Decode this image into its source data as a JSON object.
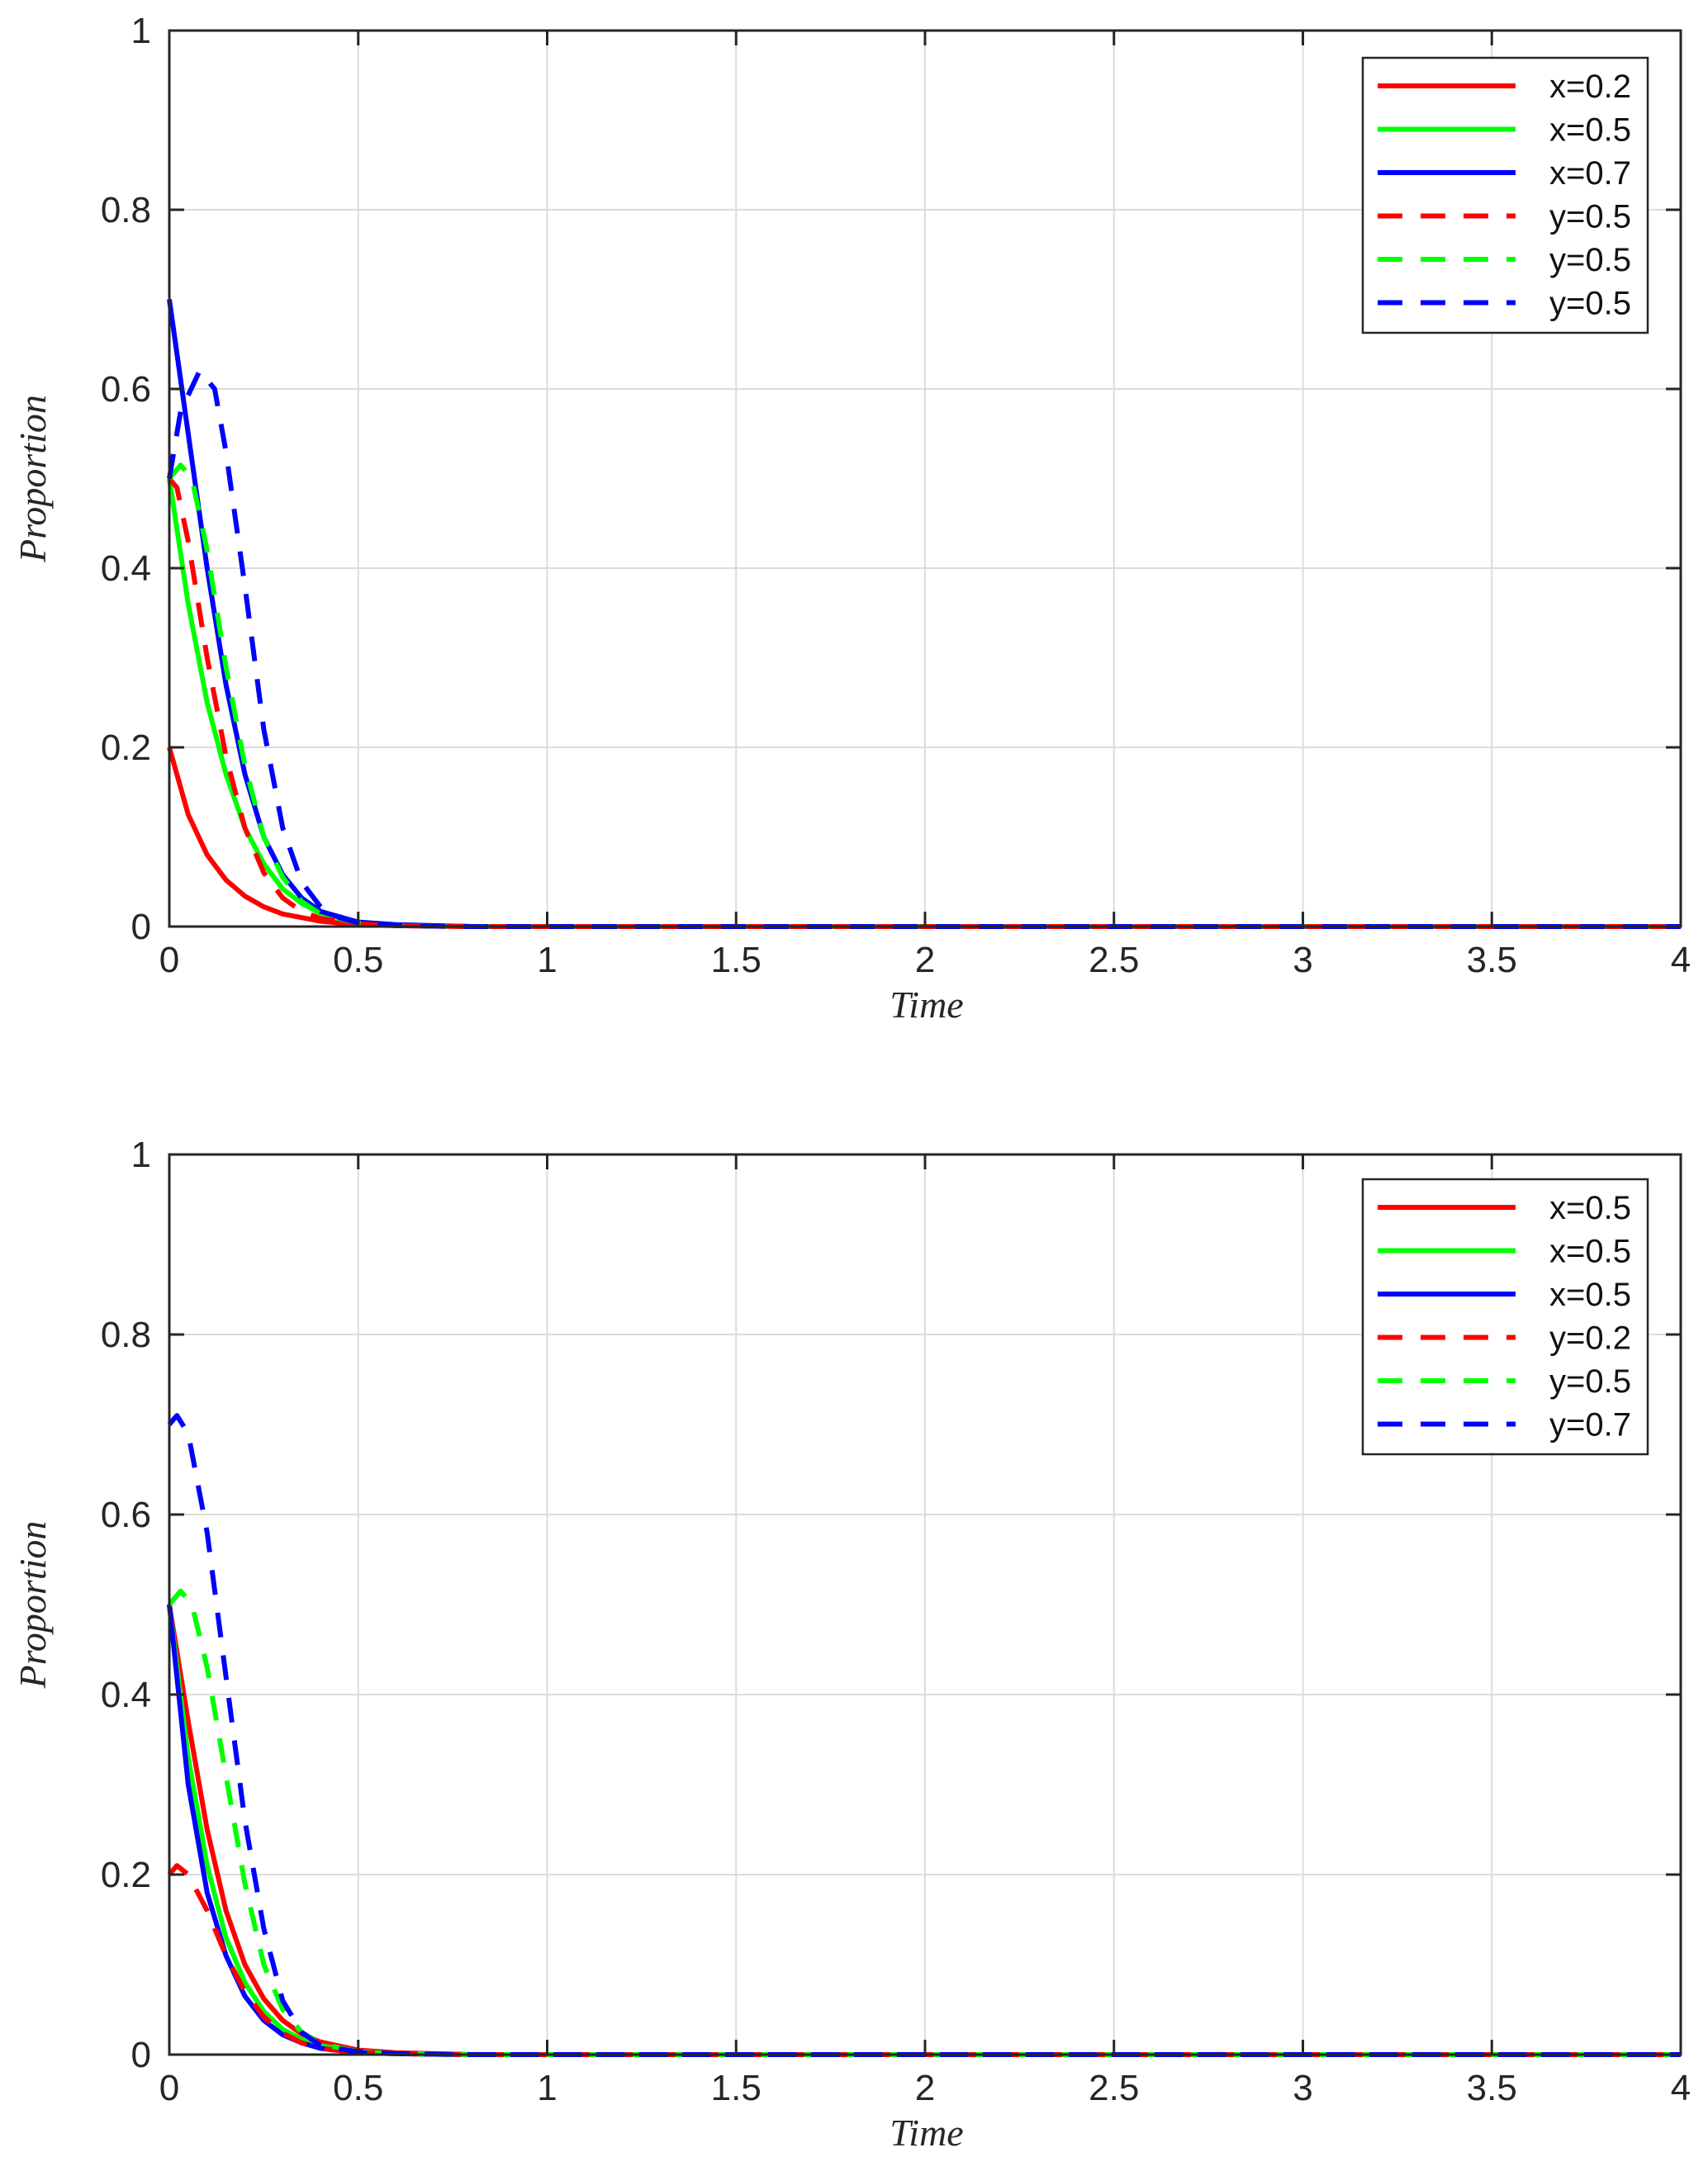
{
  "chart_data": [
    {
      "type": "line",
      "xlabel": "Time",
      "ylabel": "Proportion",
      "xlim": [
        0,
        4
      ],
      "ylim": [
        0,
        1
      ],
      "xticks": [
        "0",
        "0.5",
        "1",
        "1.5",
        "2",
        "2.5",
        "3",
        "3.5",
        "4"
      ],
      "yticks": [
        "0",
        "0.2",
        "0.4",
        "0.6",
        "0.8",
        "1"
      ],
      "grid": true,
      "legend_position": "top-right",
      "series": [
        {
          "name": "x=0.2",
          "color": "#ff0000",
          "style": "solid",
          "x": [
            0,
            0.05,
            0.1,
            0.15,
            0.2,
            0.25,
            0.3,
            0.4,
            0.5,
            0.6,
            0.8,
            1,
            2,
            3,
            4
          ],
          "y": [
            0.2,
            0.125,
            0.08,
            0.052,
            0.034,
            0.022,
            0.014,
            0.006,
            0.002,
            0.001,
            0,
            0,
            0,
            0,
            0
          ]
        },
        {
          "name": "x=0.5",
          "color": "#00ff00",
          "style": "solid",
          "x": [
            0,
            0.05,
            0.1,
            0.15,
            0.2,
            0.25,
            0.3,
            0.35,
            0.4,
            0.5,
            0.6,
            0.8,
            1,
            2,
            3,
            4
          ],
          "y": [
            0.5,
            0.36,
            0.25,
            0.17,
            0.11,
            0.07,
            0.042,
            0.026,
            0.015,
            0.005,
            0.002,
            0,
            0,
            0,
            0,
            0
          ]
        },
        {
          "name": "x=0.7",
          "color": "#0000ff",
          "style": "solid",
          "x": [
            0,
            0.05,
            0.1,
            0.15,
            0.2,
            0.25,
            0.3,
            0.35,
            0.4,
            0.5,
            0.6,
            0.8,
            1,
            2,
            3,
            4
          ],
          "y": [
            0.7,
            0.55,
            0.4,
            0.27,
            0.17,
            0.1,
            0.058,
            0.032,
            0.017,
            0.005,
            0.002,
            0,
            0,
            0,
            0,
            0
          ]
        },
        {
          "name": "y=0.5",
          "color": "#ff0000",
          "style": "dashed",
          "x": [
            0,
            0.02,
            0.05,
            0.1,
            0.15,
            0.2,
            0.25,
            0.3,
            0.35,
            0.4,
            0.5,
            0.6,
            0.8,
            1,
            2,
            3,
            4
          ],
          "y": [
            0.5,
            0.49,
            0.43,
            0.3,
            0.19,
            0.11,
            0.06,
            0.032,
            0.017,
            0.009,
            0.003,
            0.001,
            0,
            0,
            0,
            0,
            0
          ]
        },
        {
          "name": "y=0.5",
          "color": "#00ff00",
          "style": "dashed",
          "x": [
            0,
            0.03,
            0.06,
            0.1,
            0.15,
            0.2,
            0.25,
            0.3,
            0.35,
            0.4,
            0.5,
            0.6,
            0.8,
            1,
            2,
            3,
            4
          ],
          "y": [
            0.5,
            0.515,
            0.5,
            0.42,
            0.29,
            0.18,
            0.1,
            0.055,
            0.028,
            0.014,
            0.004,
            0.001,
            0,
            0,
            0,
            0,
            0
          ]
        },
        {
          "name": "y=0.5",
          "color": "#0000ff",
          "style": "dashed",
          "x": [
            0,
            0.03,
            0.08,
            0.12,
            0.15,
            0.2,
            0.25,
            0.3,
            0.35,
            0.4,
            0.45,
            0.5,
            0.6,
            0.8,
            1,
            2,
            3,
            4
          ],
          "y": [
            0.5,
            0.575,
            0.62,
            0.6,
            0.53,
            0.38,
            0.22,
            0.11,
            0.05,
            0.022,
            0.01,
            0.004,
            0.001,
            0,
            0,
            0,
            0,
            0
          ]
        }
      ]
    },
    {
      "type": "line",
      "xlabel": "Time",
      "ylabel": "Proportion",
      "xlim": [
        0,
        4
      ],
      "ylim": [
        0,
        1
      ],
      "xticks": [
        "0",
        "0.5",
        "1",
        "1.5",
        "2",
        "2.5",
        "3",
        "3.5",
        "4"
      ],
      "yticks": [
        "0",
        "0.2",
        "0.4",
        "0.6",
        "0.8",
        "1"
      ],
      "grid": true,
      "legend_position": "top-right",
      "series": [
        {
          "name": "x=0.5",
          "color": "#ff0000",
          "style": "solid",
          "x": [
            0,
            0.05,
            0.1,
            0.15,
            0.2,
            0.25,
            0.3,
            0.35,
            0.4,
            0.5,
            0.6,
            0.8,
            1,
            2,
            3,
            4
          ],
          "y": [
            0.5,
            0.37,
            0.25,
            0.16,
            0.1,
            0.062,
            0.038,
            0.023,
            0.014,
            0.005,
            0.002,
            0,
            0,
            0,
            0,
            0
          ]
        },
        {
          "name": "x=0.5",
          "color": "#00ff00",
          "style": "solid",
          "x": [
            0,
            0.05,
            0.1,
            0.15,
            0.2,
            0.25,
            0.3,
            0.35,
            0.4,
            0.5,
            0.6,
            0.8,
            1,
            2,
            3,
            4
          ],
          "y": [
            0.5,
            0.33,
            0.21,
            0.13,
            0.08,
            0.048,
            0.028,
            0.017,
            0.01,
            0.003,
            0.001,
            0,
            0,
            0,
            0,
            0
          ]
        },
        {
          "name": "x=0.5",
          "color": "#0000ff",
          "style": "solid",
          "x": [
            0,
            0.05,
            0.1,
            0.15,
            0.2,
            0.25,
            0.3,
            0.35,
            0.4,
            0.5,
            0.6,
            0.8,
            1,
            2,
            3,
            4
          ],
          "y": [
            0.5,
            0.3,
            0.18,
            0.11,
            0.065,
            0.038,
            0.022,
            0.013,
            0.007,
            0.002,
            0.001,
            0,
            0,
            0,
            0,
            0
          ]
        },
        {
          "name": "y=0.2",
          "color": "#ff0000",
          "style": "dashed",
          "x": [
            0,
            0.02,
            0.05,
            0.1,
            0.15,
            0.2,
            0.25,
            0.3,
            0.35,
            0.4,
            0.5,
            0.6,
            0.8,
            1,
            2,
            3,
            4
          ],
          "y": [
            0.2,
            0.21,
            0.2,
            0.16,
            0.11,
            0.07,
            0.042,
            0.024,
            0.013,
            0.007,
            0.002,
            0.001,
            0,
            0,
            0,
            0,
            0
          ]
        },
        {
          "name": "y=0.5",
          "color": "#00ff00",
          "style": "dashed",
          "x": [
            0,
            0.03,
            0.06,
            0.1,
            0.15,
            0.2,
            0.25,
            0.3,
            0.35,
            0.4,
            0.5,
            0.6,
            0.8,
            1,
            2,
            3,
            4
          ],
          "y": [
            0.5,
            0.515,
            0.5,
            0.43,
            0.31,
            0.19,
            0.1,
            0.05,
            0.025,
            0.012,
            0.003,
            0.001,
            0,
            0,
            0,
            0,
            0
          ]
        },
        {
          "name": "y=0.7",
          "color": "#0000ff",
          "style": "dashed",
          "x": [
            0,
            0.02,
            0.05,
            0.1,
            0.15,
            0.2,
            0.25,
            0.3,
            0.35,
            0.4,
            0.5,
            0.6,
            0.8,
            1,
            2,
            3,
            4
          ],
          "y": [
            0.7,
            0.71,
            0.69,
            0.58,
            0.42,
            0.26,
            0.14,
            0.06,
            0.025,
            0.01,
            0.003,
            0.001,
            0,
            0,
            0,
            0,
            0
          ]
        }
      ]
    }
  ]
}
